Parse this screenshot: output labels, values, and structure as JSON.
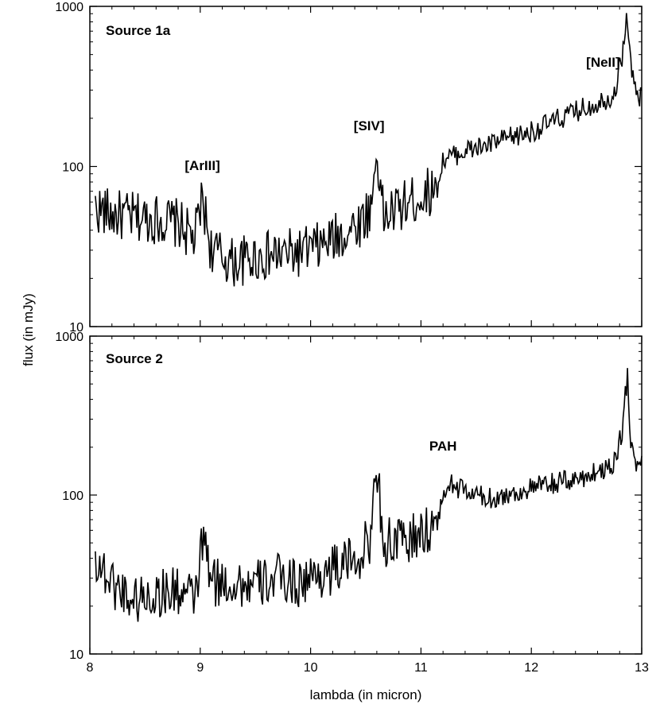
{
  "figure": {
    "ylabel": "flux (in mJy)",
    "xlabel": "lambda (in micron)"
  },
  "chart_data": [
    {
      "type": "line",
      "panel_label": "Source 1a",
      "yscale": "log",
      "xlim": [
        8,
        13
      ],
      "ylim": [
        10,
        1000
      ],
      "x_ticks": [
        8,
        9,
        10,
        11,
        12,
        13
      ],
      "x_tick_labels": [
        "8",
        "9",
        "10",
        "11",
        "12",
        "13"
      ],
      "x_tick_labels_visible": false,
      "y_ticks": [
        10,
        100,
        1000
      ],
      "y_tick_labels": [
        "10",
        "100",
        "1000"
      ],
      "grid": false,
      "annotations": [
        {
          "text": "[ArIII]",
          "x": 9.02,
          "y": 95
        },
        {
          "text": "[SIV]",
          "x": 10.53,
          "y": 168
        },
        {
          "text": "[NeII]",
          "x": 12.65,
          "y": 420
        }
      ],
      "series": [
        {
          "color": "#000000",
          "x": [
            8.05,
            8.2,
            8.4,
            8.6,
            8.8,
            8.95,
            9.02,
            9.1,
            9.3,
            9.5,
            9.7,
            9.9,
            10.1,
            10.3,
            10.45,
            10.55,
            10.6,
            10.66,
            10.8,
            11.0,
            11.15,
            11.2,
            11.4,
            11.6,
            11.8,
            12.0,
            12.2,
            12.4,
            12.6,
            12.75,
            12.82,
            12.87,
            12.9,
            12.94,
            13.0
          ],
          "y": [
            55,
            50,
            48,
            47,
            44,
            35,
            63,
            30,
            25,
            27,
            28,
            29,
            32,
            38,
            45,
            55,
            128,
            48,
            55,
            65,
            75,
            110,
            125,
            135,
            150,
            165,
            190,
            220,
            250,
            280,
            480,
            900,
            430,
            300,
            260
          ]
        }
      ]
    },
    {
      "type": "line",
      "panel_label": "Source 2",
      "yscale": "log",
      "xlim": [
        8,
        13
      ],
      "ylim": [
        10,
        1000
      ],
      "x_ticks": [
        8,
        9,
        10,
        11,
        12,
        13
      ],
      "x_tick_labels": [
        "8",
        "9",
        "10",
        "11",
        "12",
        "13"
      ],
      "y_ticks": [
        10,
        100,
        1000
      ],
      "y_tick_labels": [
        "10",
        "100",
        "1000"
      ],
      "grid": false,
      "annotations": [
        {
          "text": "PAH",
          "x": 11.2,
          "y": 190
        }
      ],
      "series": [
        {
          "color": "#000000",
          "x": [
            8.05,
            8.2,
            8.4,
            8.6,
            8.8,
            8.95,
            9.03,
            9.1,
            9.3,
            9.5,
            9.7,
            9.9,
            10.1,
            10.3,
            10.45,
            10.55,
            10.6,
            10.66,
            10.8,
            11.0,
            11.15,
            11.25,
            11.4,
            11.6,
            11.8,
            12.0,
            12.2,
            12.4,
            12.6,
            12.75,
            12.82,
            12.87,
            12.9,
            12.95,
            13.0
          ],
          "y": [
            40,
            28,
            22,
            24,
            25,
            22,
            55,
            28,
            28,
            27,
            30,
            28,
            32,
            36,
            42,
            55,
            160,
            50,
            50,
            55,
            70,
            120,
            105,
            95,
            100,
            110,
            118,
            125,
            140,
            160,
            250,
            560,
            230,
            160,
            150
          ]
        }
      ]
    }
  ]
}
